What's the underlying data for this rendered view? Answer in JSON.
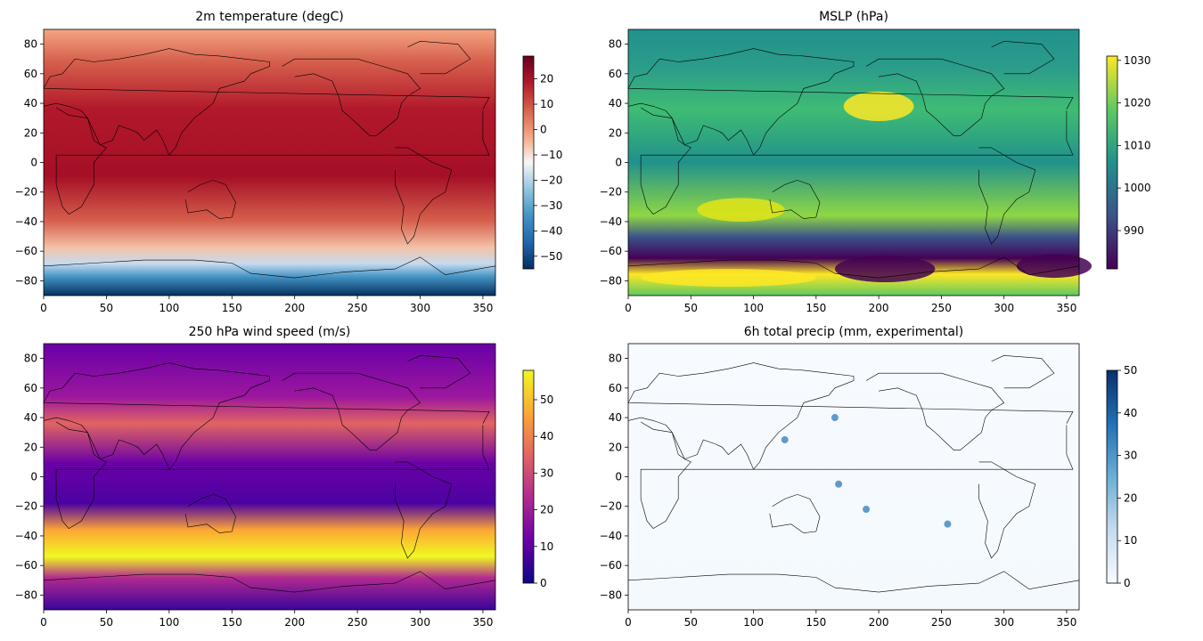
{
  "chart_data": [
    {
      "type": "heatmap",
      "title": "2m temperature (degC)",
      "x_ticks": [
        0,
        50,
        100,
        150,
        200,
        250,
        300,
        350
      ],
      "y_ticks": [
        80,
        60,
        40,
        20,
        0,
        -20,
        -40,
        -60,
        -80
      ],
      "xlim": [
        0,
        360
      ],
      "ylim": [
        -90,
        90
      ],
      "colorbar": {
        "colormap": "RdBu_r",
        "range": [
          -55,
          29
        ],
        "ticks": [
          20,
          10,
          0,
          -10,
          -20,
          -30,
          -40,
          -50
        ]
      },
      "colors": [
        "#053061",
        "#2166ac",
        "#4393c3",
        "#92c5de",
        "#f7f7f7",
        "#f4a582",
        "#d6604d",
        "#b2182b",
        "#67001f"
      ]
    },
    {
      "type": "heatmap",
      "title": "MSLP (hPa)",
      "x_ticks": [
        0,
        50,
        100,
        150,
        200,
        250,
        300,
        350
      ],
      "y_ticks": [
        80,
        60,
        40,
        20,
        0,
        -20,
        -40,
        -60,
        -80
      ],
      "xlim": [
        0,
        360
      ],
      "ylim": [
        -90,
        90
      ],
      "colorbar": {
        "colormap": "viridis",
        "range": [
          981,
          1031
        ],
        "ticks": [
          1030,
          1020,
          1010,
          1000,
          990
        ]
      },
      "colors": [
        "#440154",
        "#3b528b",
        "#21918c",
        "#5ec962",
        "#fde725"
      ]
    },
    {
      "type": "heatmap",
      "title": "250 hPa wind speed (m/s)",
      "x_ticks": [
        0,
        50,
        100,
        150,
        200,
        250,
        300,
        350
      ],
      "y_ticks": [
        80,
        60,
        40,
        20,
        0,
        -20,
        -40,
        -60,
        -80
      ],
      "xlim": [
        0,
        360
      ],
      "ylim": [
        -90,
        90
      ],
      "colorbar": {
        "colormap": "plasma",
        "range": [
          0,
          58
        ],
        "ticks": [
          50,
          40,
          30,
          20,
          10,
          0
        ]
      },
      "colors": [
        "#0d0887",
        "#6a00a8",
        "#b12a90",
        "#e16462",
        "#fca636",
        "#f0f921"
      ]
    },
    {
      "type": "heatmap",
      "title": "6h total precip (mm, experimental)",
      "x_ticks": [
        0,
        50,
        100,
        150,
        200,
        250,
        300,
        350
      ],
      "y_ticks": [
        80,
        60,
        40,
        20,
        0,
        -20,
        -40,
        -60,
        -80
      ],
      "xlim": [
        0,
        360
      ],
      "ylim": [
        -90,
        90
      ],
      "colorbar": {
        "colormap": "Blues",
        "range": [
          0,
          50
        ],
        "ticks": [
          50,
          40,
          30,
          20,
          10,
          0
        ]
      },
      "colors": [
        "#f7fbff",
        "#c6dbef",
        "#6baed6",
        "#2171b5",
        "#08306b"
      ]
    }
  ]
}
